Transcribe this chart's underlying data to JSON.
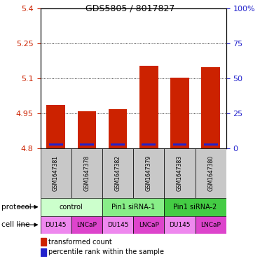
{
  "title": "GDS5805 / 8017827",
  "samples": [
    "GSM1647381",
    "GSM1647378",
    "GSM1647382",
    "GSM1647379",
    "GSM1647383",
    "GSM1647380"
  ],
  "transformed_counts": [
    4.985,
    4.958,
    4.968,
    5.155,
    5.103,
    5.148
  ],
  "percentile_ranks": [
    8,
    8,
    8,
    8,
    8,
    8
  ],
  "bar_bottom": 4.8,
  "left_ylim": [
    4.8,
    5.4
  ],
  "left_yticks": [
    4.8,
    4.95,
    5.1,
    5.25,
    5.4
  ],
  "left_yticklabels": [
    "4.8",
    "4.95",
    "5.1",
    "5.25",
    "5.4"
  ],
  "right_ylim": [
    0,
    100
  ],
  "right_yticks": [
    0,
    25,
    50,
    75,
    100
  ],
  "right_yticklabels": [
    "0",
    "25",
    "50",
    "75",
    "100%"
  ],
  "protocol_groups": [
    {
      "label": "control",
      "span": [
        0,
        2
      ],
      "color": "#ccffcc"
    },
    {
      "label": "Pin1 siRNA-1",
      "span": [
        2,
        4
      ],
      "color": "#88ee88"
    },
    {
      "label": "Pin1 siRNA-2",
      "span": [
        4,
        6
      ],
      "color": "#44cc44"
    }
  ],
  "cell_lines": [
    "DU145",
    "LNCaP",
    "DU145",
    "LNCaP",
    "DU145",
    "LNCaP"
  ],
  "du145_color": "#ee88ee",
  "lncap_color": "#dd44cc",
  "bar_color": "#cc2200",
  "percentile_color": "#2222cc",
  "bg_color": "#ffffff",
  "sample_bg_color": "#c8c8c8",
  "left_axis_color": "#cc2200",
  "right_axis_color": "#2222cc",
  "legend_red_label": "transformed count",
  "legend_blue_label": "percentile rank within the sample"
}
